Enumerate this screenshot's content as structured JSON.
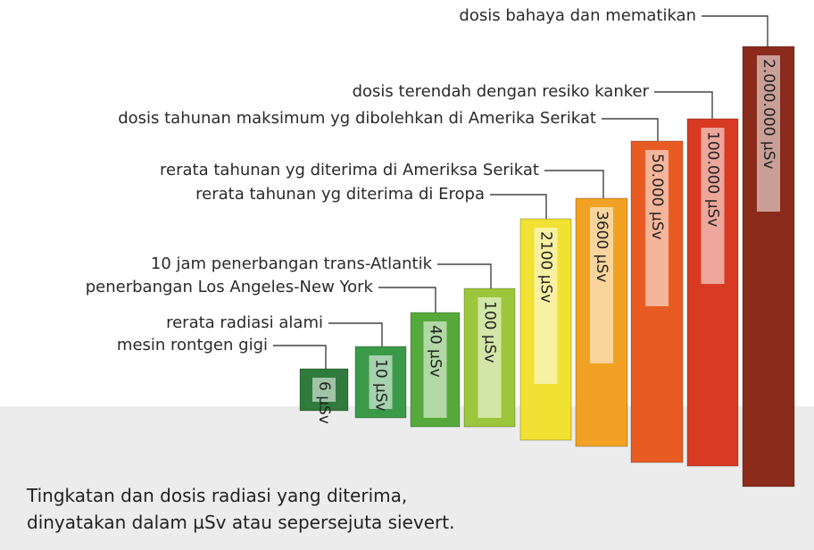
{
  "items": [
    {
      "label": "mesin rontgen gigi",
      "dose": "6 µSv"
    },
    {
      "label": "rerata radiasi alami",
      "dose": "10 µSv"
    },
    {
      "label": "penerbangan Los Angeles-New York",
      "dose": "40 µSv"
    },
    {
      "label": "10 jam penerbangan trans-Atlantik",
      "dose": "100 µSv"
    },
    {
      "label": "rerata tahunan yg diterima di Eropa",
      "dose": "2100 µSv"
    },
    {
      "label": "rerata tahunan yg diterima di Ameriksa Serikat",
      "dose": "3600 µSv"
    },
    {
      "label": "dosis tahunan maksimum yg dibolehkan di Amerika Serikat",
      "dose": "50.000 µSv"
    },
    {
      "label": "dosis terendah dengan resiko kanker",
      "dose": "100.000 µSv"
    },
    {
      "label": "dosis bahaya dan mematikan",
      "dose": "2.000.000 µSv"
    }
  ],
  "caption": [
    "Tingkatan dan dosis radiasi yang diterima,",
    "dinyatakan dalam µSv atau sepersejuta sievert."
  ]
}
